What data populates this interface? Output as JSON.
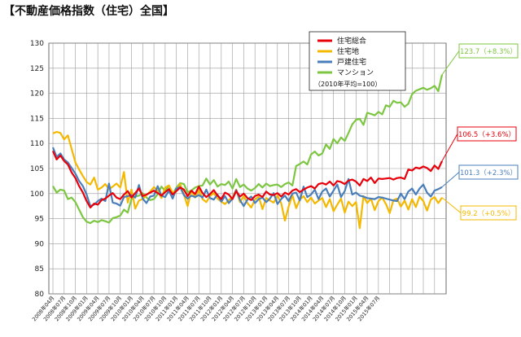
{
  "chart_data": {
    "type": "line",
    "title": "【不動産価格指数（住宅）全国】",
    "note": "（2010年平均=100）",
    "ylim": [
      80,
      130
    ],
    "yticks": [
      80,
      85,
      90,
      95,
      100,
      105,
      110,
      115,
      120,
      125,
      130
    ],
    "grid": true,
    "legend_position": "top-center",
    "x_tick_labels": [
      "2008年04月",
      "2008年07月",
      "2008年10月",
      "2009年01月",
      "2009年04月",
      "2009年07月",
      "2009年10月",
      "2010年01月",
      "2010年04月",
      "2010年07月",
      "2010年10月",
      "2011年01月",
      "2011年04月",
      "2011年07月",
      "2011年10月",
      "2012年01月",
      "2012年04月",
      "2012年07月",
      "2012年10月",
      "2013年01月",
      "2013年04月",
      "2013年07月",
      "2013年10月",
      "2014年01月",
      "2014年04月",
      "2014年07月",
      "2014年10月",
      "2015年01月",
      "2015年04月",
      "2015年07月"
    ],
    "series": [
      {
        "name": "住宅総合",
        "color": "#e8000b",
        "values": [
          108.5,
          106.8,
          107.6,
          106.5,
          105.8,
          104.2,
          103.1,
          101.5,
          100.2,
          98.5,
          97.2,
          98.0,
          97.8,
          98.7,
          99.0,
          99.6,
          100.1,
          99.2,
          98.9,
          99.8,
          100.5,
          99.2,
          100.1,
          101.0,
          99.5,
          99.8,
          100.2,
          100.6,
          100.1,
          99.6,
          100.3,
          100.9,
          99.8,
          100.5,
          101.2,
          100.8,
          99.5,
          100.6,
          99.9,
          101.4,
          100.1,
          99.3,
          99.9,
          100.7,
          99.6,
          98.9,
          100.2,
          99.8,
          98.9,
          100.5,
          99.4,
          100.0,
          99.1,
          98.7,
          99.5,
          99.8,
          99.3,
          100.4,
          99.8,
          99.7,
          100.1,
          99.4,
          100.2,
          99.8,
          100.6,
          100.9,
          100.3,
          100.8,
          101.2,
          101.5,
          101.0,
          101.9,
          102.1,
          101.8,
          102.4,
          101.6,
          102.5,
          102.3,
          101.9,
          102.6,
          102.8,
          102.4,
          101.6,
          102.9,
          102.5,
          103.2,
          102.1,
          103.0,
          102.9,
          103.0,
          103.1,
          102.8,
          103.1,
          103.2,
          102.9,
          104.8,
          104.6,
          105.2,
          105.0,
          105.4,
          105.1,
          104.5,
          105.6,
          104.9,
          106.5
        ]
      },
      {
        "name": "住宅地",
        "color": "#f5b800",
        "values": [
          112.0,
          112.3,
          112.1,
          110.8,
          111.6,
          108.9,
          106.2,
          104.8,
          103.5,
          102.3,
          101.8,
          103.2,
          100.8,
          101.2,
          101.9,
          100.9,
          101.4,
          102.0,
          101.2,
          104.3,
          98.2,
          100.8,
          97.0,
          98.6,
          98.9,
          99.7,
          100.4,
          101.3,
          100.6,
          99.1,
          101.2,
          101.6,
          100.2,
          100.7,
          101.9,
          99.8,
          97.5,
          100.6,
          99.2,
          100.8,
          98.9,
          98.3,
          99.5,
          100.1,
          99.0,
          98.4,
          97.9,
          98.7,
          99.2,
          100.8,
          98.3,
          99.5,
          98.1,
          97.2,
          98.8,
          99.4,
          96.9,
          99.1,
          98.6,
          98.2,
          99.6,
          98.1,
          94.6,
          97.4,
          99.7,
          97.1,
          98.8,
          99.5,
          98.3,
          99.2,
          98.0,
          98.6,
          99.1,
          97.3,
          98.9,
          96.5,
          97.8,
          99.0,
          96.2,
          98.4,
          97.5,
          98.3,
          93.1,
          99.5,
          98.1,
          99.0,
          96.7,
          98.5,
          99.2,
          97.9,
          96.1,
          98.7,
          99.0,
          97.4,
          98.6,
          96.8,
          98.9,
          97.3,
          99.4,
          98.5,
          96.6,
          98.8,
          99.3,
          98.1,
          99.2
        ]
      },
      {
        "name": "戸建住宅",
        "color": "#4a7ebb",
        "values": [
          109.2,
          107.3,
          108.0,
          106.8,
          106.2,
          105.1,
          104.0,
          102.5,
          101.5,
          99.8,
          97.5,
          97.8,
          98.5,
          99.0,
          98.5,
          102.0,
          98.2,
          98.0,
          97.6,
          99.3,
          99.5,
          99.7,
          99.2,
          101.7,
          99.0,
          98.1,
          99.4,
          99.6,
          101.5,
          99.6,
          99.3,
          100.6,
          99.0,
          101.0,
          101.3,
          99.7,
          99.0,
          99.6,
          99.3,
          99.7,
          99.2,
          100.8,
          99.1,
          98.8,
          99.8,
          98.4,
          99.5,
          98.1,
          99.0,
          100.7,
          98.7,
          97.5,
          98.8,
          99.4,
          98.1,
          98.9,
          99.2,
          98.3,
          99.0,
          100.1,
          97.9,
          98.9,
          99.6,
          98.5,
          100.0,
          100.2,
          98.6,
          101.4,
          99.3,
          99.8,
          100.8,
          98.9,
          100.4,
          101.0,
          99.4,
          100.6,
          101.8,
          99.3,
          100.5,
          102.9,
          99.8,
          100.2,
          99.6,
          99.4,
          99.1,
          99.0,
          98.9,
          99.3,
          99.2,
          99.0,
          98.8,
          98.6,
          98.5,
          100.0,
          98.9,
          100.4,
          101.0,
          99.8,
          101.0,
          101.8,
          100.2,
          99.4,
          100.6,
          100.9,
          101.3
        ]
      },
      {
        "name": "マンション",
        "color": "#7dc642",
        "values": [
          101.5,
          100.2,
          100.8,
          100.6,
          98.9,
          99.2,
          98.3,
          96.8,
          95.3,
          94.4,
          94.1,
          94.6,
          94.3,
          94.7,
          94.5,
          94.2,
          95.1,
          95.3,
          95.6,
          96.8,
          96.2,
          98.9,
          99.4,
          99.6,
          100.1,
          99.2,
          98.7,
          98.9,
          99.9,
          101.4,
          100.5,
          101.6,
          99.9,
          101.2,
          102.1,
          101.9,
          100.3,
          100.6,
          101.2,
          101.5,
          101.6,
          103.0,
          101.8,
          102.7,
          101.4,
          101.9,
          101.7,
          102.4,
          101.0,
          102.9,
          101.3,
          101.8,
          101.0,
          100.6,
          101.1,
          101.9,
          101.2,
          102.0,
          101.5,
          101.7,
          101.8,
          101.3,
          101.9,
          102.2,
          101.6,
          105.5,
          105.9,
          106.4,
          105.8,
          107.8,
          108.4,
          107.6,
          108.0,
          109.8,
          108.9,
          110.9,
          110.0,
          111.2,
          110.5,
          112.1,
          113.8,
          114.7,
          114.9,
          113.7,
          116.1,
          115.9,
          115.6,
          116.3,
          115.8,
          117.6,
          117.3,
          118.5,
          118.1,
          118.2,
          117.3,
          117.9,
          119.8,
          120.5,
          120.8,
          121.1,
          120.7,
          121.0,
          121.5,
          120.4,
          123.7
        ]
      }
    ],
    "callouts": [
      {
        "series": "マンション",
        "text": "123.7（+8.3%）"
      },
      {
        "series": "住宅総合",
        "text": "106.5（+3.6%）"
      },
      {
        "series": "戸建住宅",
        "text": "101.3（+2.3%）"
      },
      {
        "series": "住宅地",
        "text": "99.2（+0.5%）"
      }
    ]
  }
}
